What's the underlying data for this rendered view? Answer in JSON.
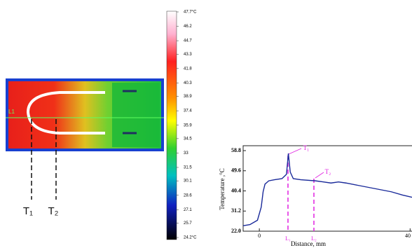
{
  "thermal_image": {
    "line_label": "L1",
    "point_labels": [
      "T₁",
      "T₂"
    ]
  },
  "colorbar": {
    "lim": [
      24.2,
      47.7
    ],
    "ticks": [
      {
        "value": 47.7,
        "label": "47.7°C"
      },
      46.2,
      44.7,
      43.3,
      41.8,
      40.3,
      38.9,
      37.4,
      35.9,
      34.5,
      33.0,
      31.5,
      30.1,
      28.6,
      27.1,
      25.7,
      {
        "value": 24.2,
        "label": "24.2°C"
      }
    ]
  },
  "chart_data": {
    "type": "line",
    "xlabel": "Distance, mm",
    "ylabel": "Temperature ,°C",
    "x": [
      -4.3,
      -2.5,
      -0.5,
      0.5,
      1.0,
      1.5,
      2.5,
      4,
      6,
      7.2,
      7.7,
      8.2,
      9,
      11,
      14.9,
      17,
      19,
      21,
      23,
      26,
      29,
      32,
      35,
      38,
      40.5
    ],
    "values": [
      24.5,
      25,
      27,
      33,
      40,
      43.5,
      45,
      45.5,
      46,
      48,
      57.5,
      49,
      46,
      45.5,
      45,
      44.5,
      44,
      44.5,
      44,
      43,
      42,
      41,
      40,
      38.5,
      37.5
    ],
    "color": "#1a2a9a",
    "xlim": [
      -4.3,
      40.5
    ],
    "xticks": [
      0,
      40
    ],
    "ylim": [
      22.0,
      58.8
    ],
    "yticks": [
      {
        "value": 22.0,
        "label": "22.0"
      },
      31.2,
      40.4,
      49.6,
      58.8
    ],
    "annotations": [
      "T₁",
      "T₂"
    ],
    "marker_labels": [
      "L₁",
      "L₂"
    ]
  }
}
